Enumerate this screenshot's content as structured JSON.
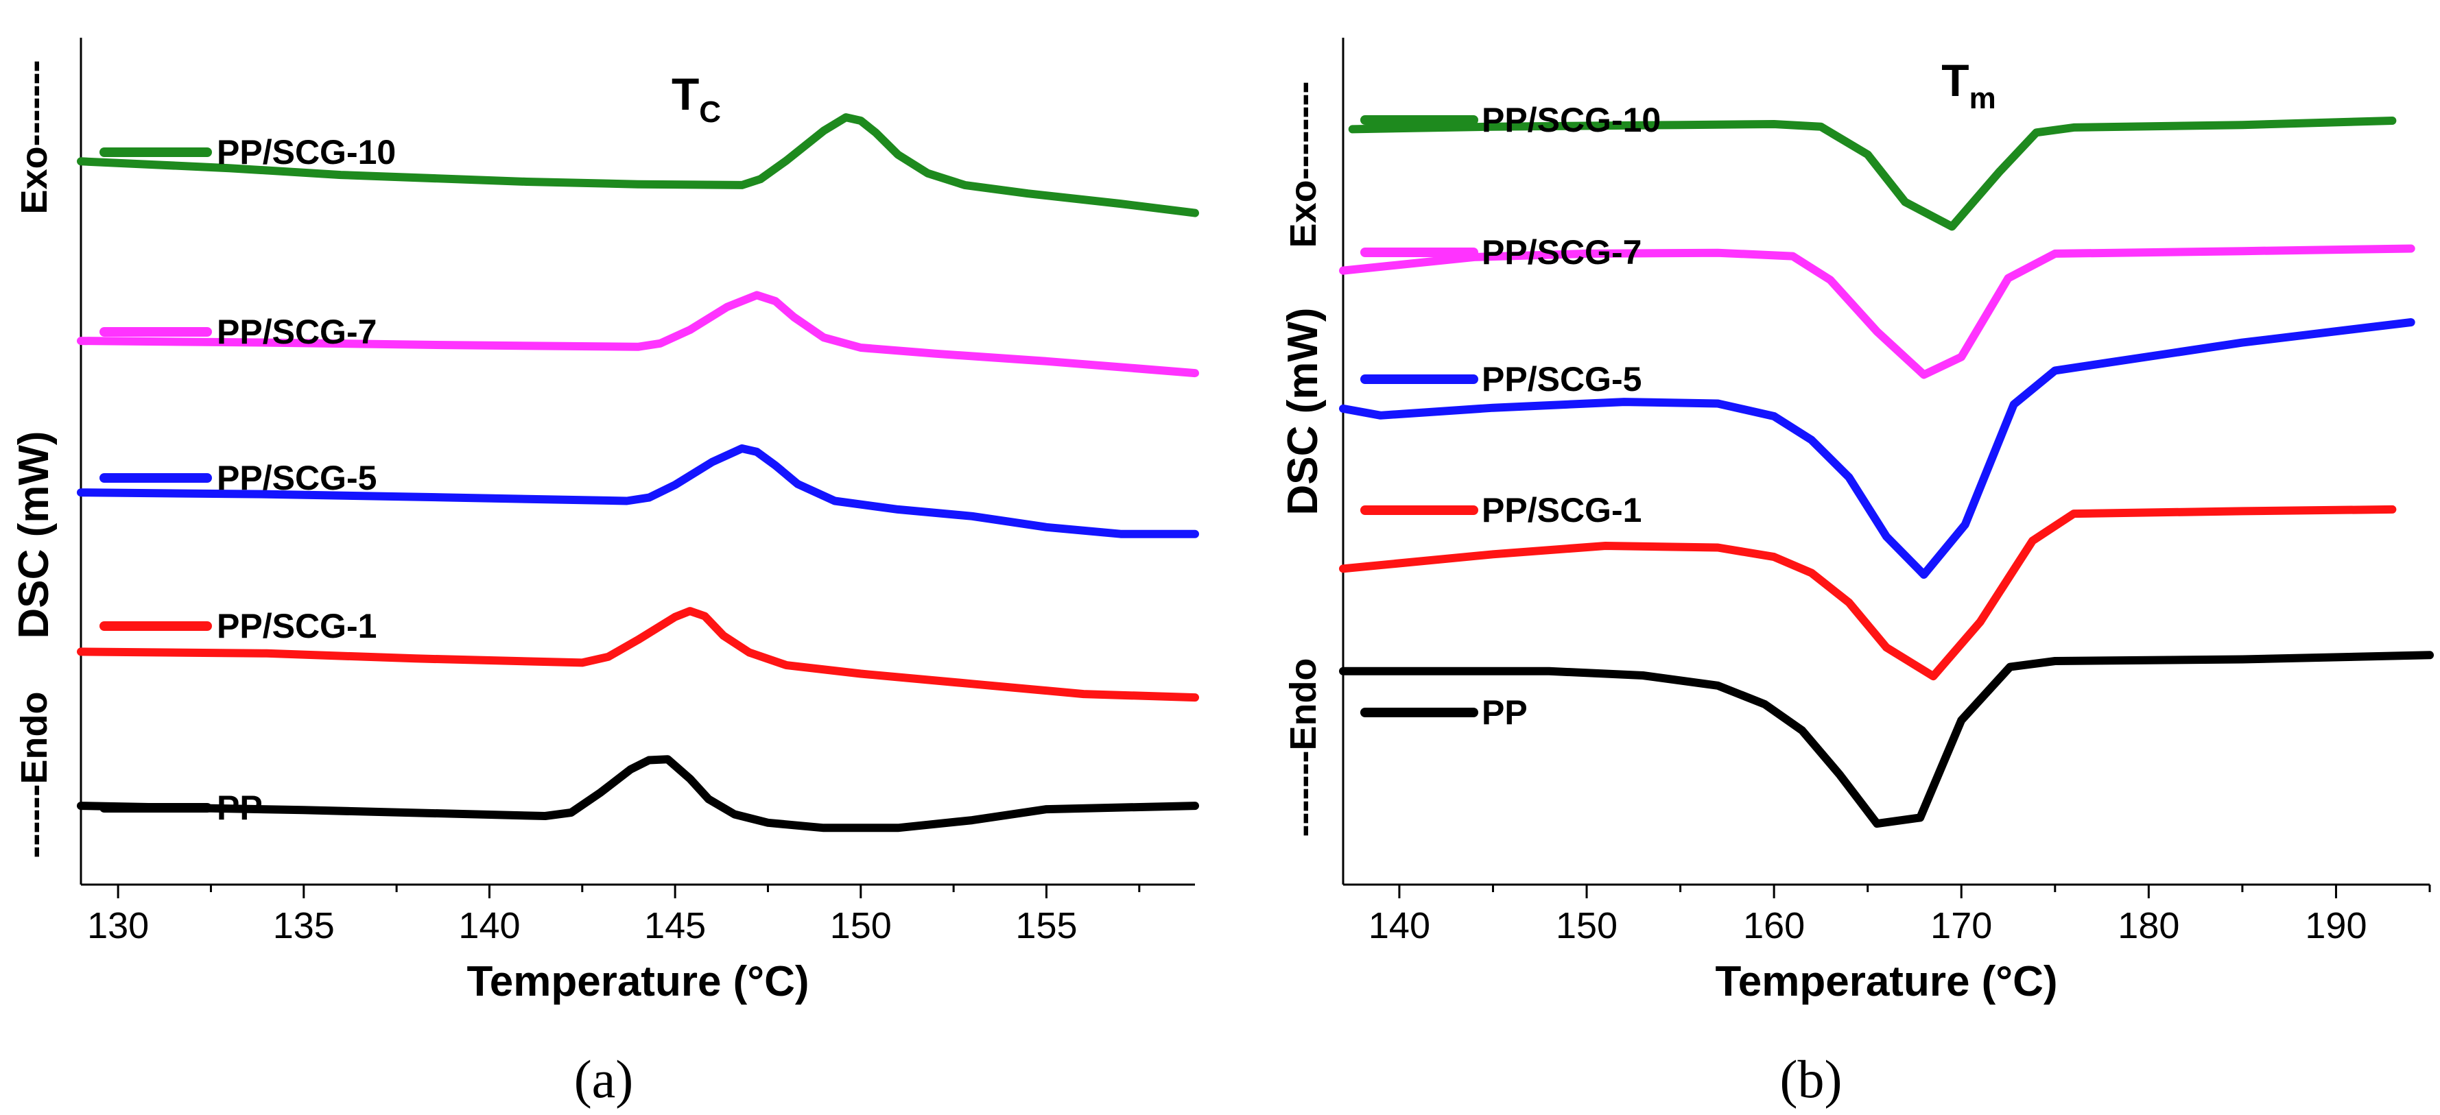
{
  "chart_data": [
    {
      "type": "line",
      "panel": "(a)",
      "title": "T",
      "title_sub": "C",
      "xlabel": "Temperature (°C)",
      "ylabel": "DSC (mW)",
      "exo_label": "Exo-------",
      "endo_label": "------Endo",
      "xlim": [
        129,
        159
      ],
      "ylim": [
        0,
        100
      ],
      "xticks": [
        130,
        135,
        140,
        145,
        150,
        155
      ],
      "grid": false,
      "legend": "inline-left",
      "series": [
        {
          "name": "PP/SCG-10",
          "color": "#1e8a1e",
          "points": [
            [
              129,
              85.4
            ],
            [
              133,
              84.6
            ],
            [
              136,
              83.8
            ],
            [
              141,
              83
            ],
            [
              144,
              82.7
            ],
            [
              146.8,
              82.6
            ],
            [
              147.3,
              83.3
            ],
            [
              148,
              85.5
            ],
            [
              149,
              89
            ],
            [
              149.6,
              90.6
            ],
            [
              150,
              90.2
            ],
            [
              150.4,
              88.8
            ],
            [
              151,
              86.2
            ],
            [
              151.8,
              84
            ],
            [
              152.8,
              82.6
            ],
            [
              154.5,
              81.6
            ],
            [
              157,
              80.4
            ],
            [
              159,
              79.3
            ]
          ]
        },
        {
          "name": "PP/SCG-7",
          "color": "#ff33ff",
          "points": [
            [
              129,
              64.2
            ],
            [
              134,
              64
            ],
            [
              139,
              63.7
            ],
            [
              144,
              63.5
            ],
            [
              144.6,
              63.9
            ],
            [
              145.4,
              65.5
            ],
            [
              146.4,
              68.2
            ],
            [
              147.2,
              69.6
            ],
            [
              147.7,
              68.9
            ],
            [
              148.2,
              67
            ],
            [
              149,
              64.6
            ],
            [
              150,
              63.4
            ],
            [
              152,
              62.7
            ],
            [
              155,
              61.8
            ],
            [
              159,
              60.4
            ]
          ]
        },
        {
          "name": "PP/SCG-5",
          "color": "#1414ff",
          "points": [
            [
              129,
              46.3
            ],
            [
              134,
              46.1
            ],
            [
              139,
              45.7
            ],
            [
              143.7,
              45.3
            ],
            [
              144.3,
              45.7
            ],
            [
              145,
              47.2
            ],
            [
              146,
              49.9
            ],
            [
              146.8,
              51.5
            ],
            [
              147.2,
              51.1
            ],
            [
              147.7,
              49.5
            ],
            [
              148.3,
              47.3
            ],
            [
              149.3,
              45.3
            ],
            [
              151,
              44.3
            ],
            [
              153,
              43.5
            ],
            [
              155,
              42.2
            ],
            [
              157,
              41.4
            ],
            [
              159,
              41.4
            ]
          ]
        },
        {
          "name": "PP/SCG-1",
          "color": "#ff1414",
          "points": [
            [
              129,
              27.5
            ],
            [
              134,
              27.3
            ],
            [
              138,
              26.7
            ],
            [
              142.5,
              26.2
            ],
            [
              143.2,
              26.9
            ],
            [
              144,
              28.9
            ],
            [
              145,
              31.6
            ],
            [
              145.4,
              32.3
            ],
            [
              145.8,
              31.7
            ],
            [
              146.3,
              29.4
            ],
            [
              147,
              27.4
            ],
            [
              148,
              25.9
            ],
            [
              150,
              24.9
            ],
            [
              153,
              23.7
            ],
            [
              156,
              22.5
            ],
            [
              159,
              22.1
            ]
          ]
        },
        {
          "name": "PP",
          "color": "#000000",
          "points": [
            [
              129,
              9.3
            ],
            [
              135,
              8.8
            ],
            [
              141.5,
              8.1
            ],
            [
              142.2,
              8.5
            ],
            [
              143,
              10.9
            ],
            [
              143.8,
              13.6
            ],
            [
              144.3,
              14.7
            ],
            [
              144.8,
              14.8
            ],
            [
              145.4,
              12.5
            ],
            [
              145.9,
              10.1
            ],
            [
              146.6,
              8.3
            ],
            [
              147.5,
              7.3
            ],
            [
              149,
              6.7
            ],
            [
              151,
              6.7
            ],
            [
              153,
              7.6
            ],
            [
              155,
              8.9
            ],
            [
              159,
              9.3
            ]
          ]
        }
      ]
    },
    {
      "type": "line",
      "panel": "(b)",
      "title": "T",
      "title_sub": "m",
      "xlabel": "Temperature (°C)",
      "ylabel": "DSC (mW)",
      "exo_label": "Exo--------",
      "endo_label": "-------Endo",
      "xlim": [
        137,
        195
      ],
      "ylim": [
        0,
        100
      ],
      "xticks": [
        140,
        150,
        160,
        170,
        180,
        190
      ],
      "grid": false,
      "legend": "inline-left",
      "series": [
        {
          "name": "PP/SCG-10",
          "color": "#1e8a1e",
          "points": [
            [
              137.5,
              89.2
            ],
            [
              145,
              89.5
            ],
            [
              155,
              89.7
            ],
            [
              160,
              89.8
            ],
            [
              162.5,
              89.5
            ],
            [
              165,
              86.2
            ],
            [
              167,
              80.6
            ],
            [
              169.5,
              77.7
            ],
            [
              172,
              84.1
            ],
            [
              174,
              88.8
            ],
            [
              176,
              89.4
            ],
            [
              185,
              89.7
            ],
            [
              193,
              90.2
            ]
          ]
        },
        {
          "name": "PP/SCG-7",
          "color": "#ff33ff",
          "points": [
            [
              137,
              72.5
            ],
            [
              144,
              74.1
            ],
            [
              150,
              74.5
            ],
            [
              157,
              74.6
            ],
            [
              161,
              74.2
            ],
            [
              163,
              71.4
            ],
            [
              165.5,
              65.3
            ],
            [
              168,
              60.2
            ],
            [
              170,
              62.3
            ],
            [
              172.5,
              71.6
            ],
            [
              175,
              74.5
            ],
            [
              185,
              74.8
            ],
            [
              194,
              75.1
            ]
          ]
        },
        {
          "name": "PP/SCG-5",
          "color": "#1414ff",
          "points": [
            [
              137,
              56.2
            ],
            [
              139,
              55.4
            ],
            [
              145,
              56.3
            ],
            [
              152,
              57
            ],
            [
              157,
              56.8
            ],
            [
              160,
              55.3
            ],
            [
              162,
              52.5
            ],
            [
              164,
              48.1
            ],
            [
              166,
              41.1
            ],
            [
              168,
              36.6
            ],
            [
              170.2,
              42.5
            ],
            [
              172.8,
              56.7
            ],
            [
              175,
              60.7
            ],
            [
              185,
              64
            ],
            [
              194,
              66.4
            ]
          ]
        },
        {
          "name": "PP/SCG-1",
          "color": "#ff1414",
          "points": [
            [
              137,
              37.3
            ],
            [
              145,
              39
            ],
            [
              151,
              40
            ],
            [
              157,
              39.8
            ],
            [
              160,
              38.7
            ],
            [
              162,
              36.8
            ],
            [
              164,
              33.3
            ],
            [
              166,
              28
            ],
            [
              168.5,
              24.6
            ],
            [
              171,
              31
            ],
            [
              173.8,
              40.6
            ],
            [
              176,
              43.8
            ],
            [
              185,
              44.1
            ],
            [
              193,
              44.3
            ]
          ]
        },
        {
          "name": "PP",
          "color": "#000000",
          "points": [
            [
              137,
              25.2
            ],
            [
              148,
              25.2
            ],
            [
              153,
              24.7
            ],
            [
              157,
              23.5
            ],
            [
              159.5,
              21.3
            ],
            [
              161.5,
              18.2
            ],
            [
              163.5,
              13
            ],
            [
              165.5,
              7.2
            ],
            [
              167.8,
              7.9
            ],
            [
              170,
              19.4
            ],
            [
              172.6,
              25.7
            ],
            [
              175,
              26.4
            ],
            [
              185,
              26.6
            ],
            [
              195,
              27.1
            ]
          ]
        }
      ]
    }
  ]
}
